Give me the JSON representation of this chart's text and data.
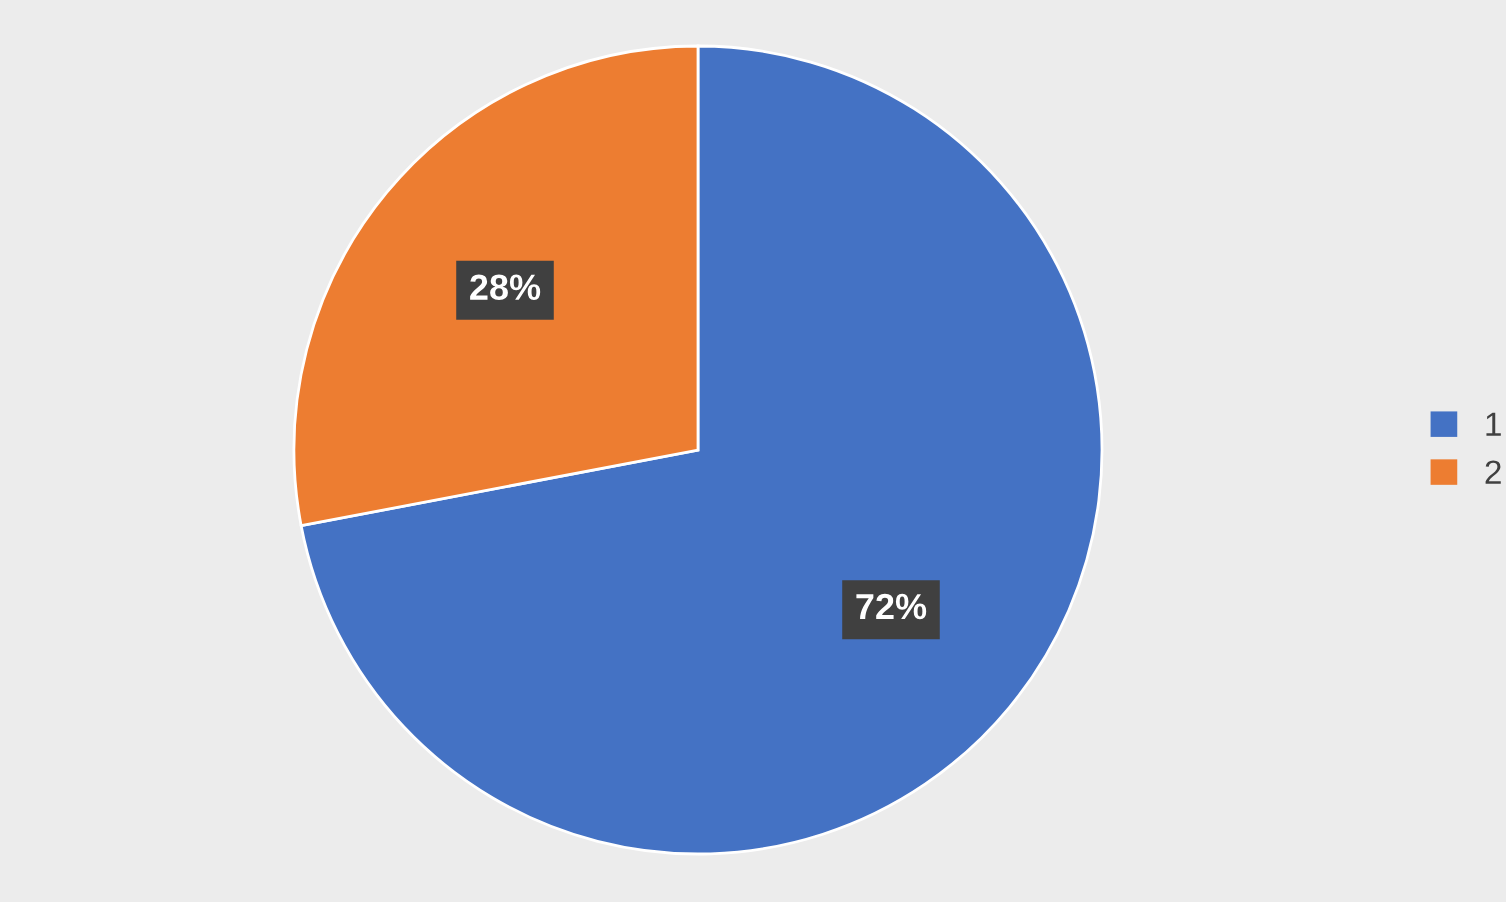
{
  "chart_data": {
    "type": "pie",
    "categories": [
      "1",
      "2"
    ],
    "values": [
      72,
      28
    ],
    "colors": [
      "#4472c4",
      "#ed7d31"
    ],
    "value_labels": [
      "72%",
      "28%"
    ],
    "legend": "right"
  }
}
